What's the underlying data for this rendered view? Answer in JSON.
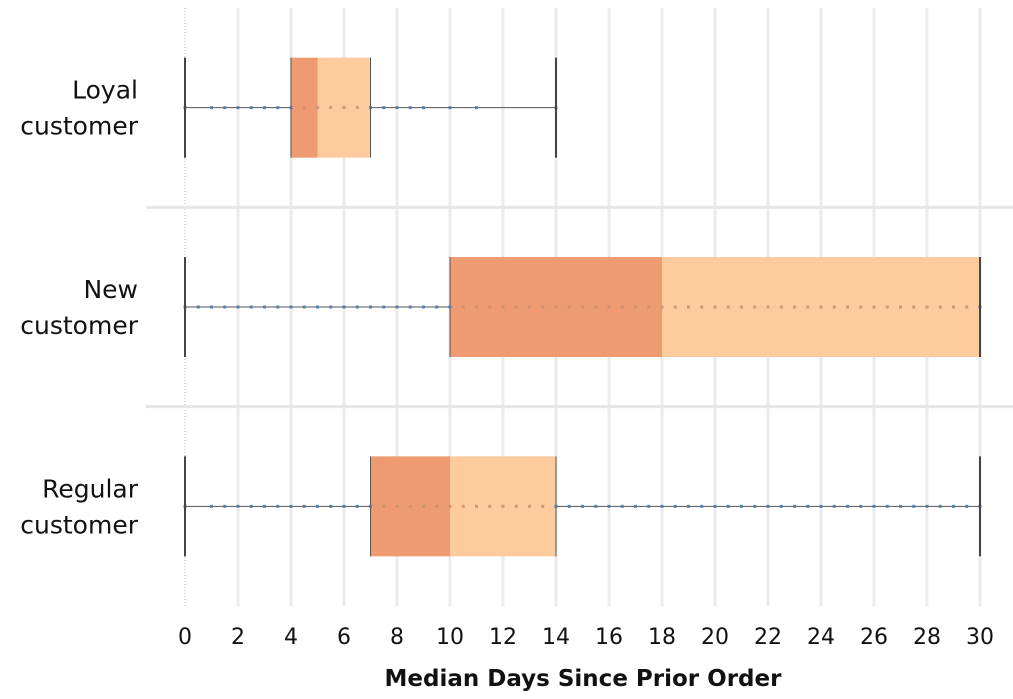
{
  "chart_data": {
    "type": "box",
    "title": "",
    "xlabel": "Median Days Since Prior Order",
    "ylabel": "",
    "xlim": [
      -1.5,
      31.5
    ],
    "x_ticks": [
      0,
      2,
      4,
      6,
      8,
      10,
      12,
      14,
      16,
      18,
      20,
      22,
      24,
      26,
      28,
      30
    ],
    "grid": true,
    "orientation": "horizontal",
    "categories": [
      {
        "label_lines": [
          "Loyal",
          "customer"
        ]
      },
      {
        "label_lines": [
          "New",
          "customer"
        ]
      },
      {
        "label_lines": [
          "Regular",
          "customer"
        ]
      }
    ],
    "boxes": [
      {
        "min": 0,
        "q1": 4,
        "median": 5,
        "q3": 7,
        "max": 14,
        "points": [
          0,
          1,
          1.5,
          2,
          2.5,
          3,
          3.5,
          4,
          4.5,
          5,
          5.5,
          6,
          6.5,
          7,
          7.5,
          8,
          8.5,
          9,
          10,
          11,
          14
        ]
      },
      {
        "min": 0,
        "q1": 10,
        "median": 18,
        "q3": 30,
        "max": 30,
        "points": [
          0,
          0.5,
          1,
          1.5,
          2,
          2.5,
          3,
          3.5,
          4,
          4.5,
          5,
          5.5,
          6,
          6.5,
          7,
          7.5,
          8,
          8.5,
          9,
          9.5,
          10,
          10.5,
          11,
          11.5,
          12,
          12.5,
          13,
          13.5,
          14,
          14.5,
          15,
          15.5,
          16,
          16.5,
          17,
          17.5,
          18,
          18.5,
          19,
          19.5,
          20,
          20.5,
          21,
          21.5,
          22,
          22.5,
          23,
          23.5,
          24,
          24.5,
          25,
          25.5,
          26,
          26.5,
          27,
          27.5,
          28,
          28.5,
          29,
          29.5,
          30
        ]
      },
      {
        "min": 0,
        "q1": 7,
        "median": 10,
        "q3": 14,
        "max": 30,
        "points": [
          0,
          1,
          1.5,
          2,
          2.5,
          3,
          3.5,
          4,
          4.5,
          5,
          5.5,
          6,
          6.5,
          7,
          7.5,
          8,
          8.5,
          9,
          9.5,
          10,
          10.5,
          11,
          11.5,
          12,
          12.5,
          13,
          13.5,
          14,
          14.5,
          15,
          15.5,
          16,
          16.5,
          17,
          17.5,
          18,
          18.5,
          19,
          19.5,
          20,
          20.5,
          21,
          21.5,
          22,
          22.5,
          23,
          23.5,
          24,
          24.5,
          25,
          25.5,
          26,
          26.5,
          27,
          27.5,
          28,
          28.5,
          29,
          29.5,
          30
        ]
      }
    ],
    "colors": {
      "lower_box": "#ee9b72",
      "upper_box": "#fdcb9e",
      "whisker": "#555555",
      "point": "#4e79a7",
      "gridline": "#ebebeb",
      "divider": "#e6e6e6"
    }
  }
}
